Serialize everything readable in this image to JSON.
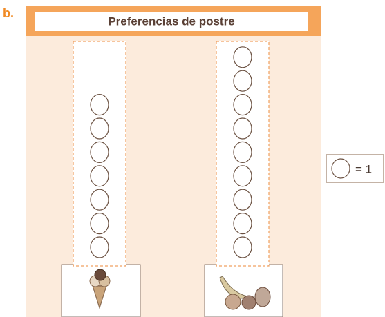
{
  "chart_data": {
    "type": "pictograph",
    "label": "b.",
    "title": "Preferencias de postre",
    "categories": [
      null,
      null
    ],
    "values": [
      7,
      9
    ],
    "key": {
      "value": 1,
      "label": "= 1"
    }
  }
}
